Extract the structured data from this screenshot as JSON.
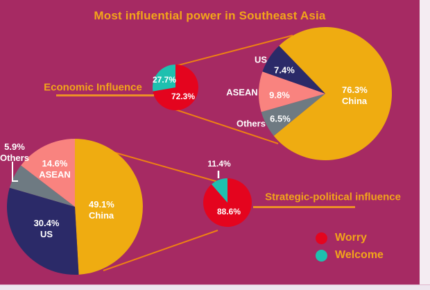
{
  "title": "Most influential power in Southeast Asia",
  "colors": {
    "background": "#A62A63",
    "gold_text": "#F2A51A",
    "connector_orange": "#EE8113",
    "worry_red": "#E4041E",
    "welcome_teal": "#1EC0AF",
    "china_gold": "#EFAC11",
    "us_navy": "#2B2A68",
    "asean_pink": "#F9837F",
    "others_gray": "#6E7A82",
    "label_white": "#FFFFFF"
  },
  "sections": {
    "economic": {
      "label": "Economic Influence"
    },
    "strategic": {
      "label": "Strategic-political influence"
    }
  },
  "labels": {
    "econ_welcome_pct": "27.7%",
    "econ_worry_pct": "72.3%",
    "b1_us": "US",
    "b1_us_pct": "7.4%",
    "b1_asean": "ASEAN",
    "b1_asean_pct": "9.8%",
    "b1_others": "Others",
    "b1_others_pct": "6.5%",
    "b1_china_pct": "76.3%",
    "b1_china": "China",
    "strat_welcome_pct": "11.4%",
    "strat_worry_pct": "88.6%",
    "b2_others_pct": "5.9%",
    "b2_others": "Others",
    "b2_asean_pct": "14.6%",
    "b2_asean": "ASEAN",
    "b2_china_pct": "49.1%",
    "b2_china": "China",
    "b2_us_pct": "30.4%",
    "b2_us": "US"
  },
  "legend": {
    "items": [
      {
        "label": "Worry",
        "color": "#E4041E"
      },
      {
        "label": "Welcome",
        "color": "#1EC0AF"
      }
    ]
  },
  "chart_data": [
    {
      "id": "economic-overall",
      "type": "pie",
      "title": "Economic Influence",
      "unit": "%",
      "start_angle": 0,
      "slices": [
        {
          "label": "Worry",
          "value": 72.3,
          "color": "#E4041E"
        },
        {
          "label": "Welcome",
          "value": 27.7,
          "color": "#1EC0AF"
        }
      ]
    },
    {
      "id": "economic-by-power",
      "type": "pie",
      "title": "Economic Influence",
      "unit": "%",
      "start_angle": 316,
      "slices": [
        {
          "label": "China",
          "value": 76.3,
          "color": "#EFAC11"
        },
        {
          "label": "Others",
          "value": 6.5,
          "color": "#6E7A82"
        },
        {
          "label": "ASEAN",
          "value": 9.8,
          "color": "#F9837F"
        },
        {
          "label": "US",
          "value": 7.4,
          "color": "#2B2A68"
        }
      ]
    },
    {
      "id": "strategic-overall",
      "type": "pie",
      "title": "Strategic-political influence",
      "unit": "%",
      "start_angle": 0,
      "slices": [
        {
          "label": "Worry",
          "value": 88.6,
          "color": "#E4041E"
        },
        {
          "label": "Welcome",
          "value": 11.4,
          "color": "#1EC0AF"
        }
      ]
    },
    {
      "id": "strategic-by-power",
      "type": "pie",
      "title": "Strategic-political influence",
      "unit": "%",
      "start_angle": 0,
      "slices": [
        {
          "label": "China",
          "value": 49.1,
          "color": "#EFAC11"
        },
        {
          "label": "US",
          "value": 30.4,
          "color": "#2B2A68"
        },
        {
          "label": "Others",
          "value": 5.9,
          "color": "#6E7A82"
        },
        {
          "label": "ASEAN",
          "value": 14.6,
          "color": "#F9837F"
        }
      ]
    }
  ]
}
